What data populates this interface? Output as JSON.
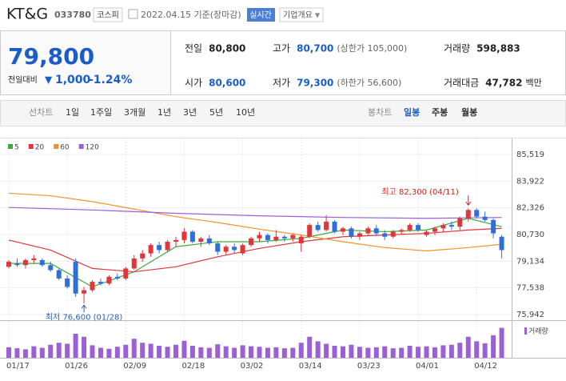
{
  "header": {
    "name": "KT&G",
    "code": "033780",
    "market": "코스피",
    "date": "2022.04.15 기준(장마감)",
    "realtime": "실시간",
    "company_info": "기업개요"
  },
  "quote": {
    "price": "79,800",
    "change_label": "전일대비",
    "change": "1,000",
    "change_pct": "-1.24%",
    "stats": [
      {
        "label": "전일",
        "value": "80,800"
      },
      {
        "label": "고가",
        "value": "80,700",
        "note": "(상한가 105,000)",
        "color": "#1a5cc8"
      },
      {
        "label": "거래량",
        "value": "598,883"
      },
      {
        "label": "시가",
        "value": "80,600",
        "color": "#1a5cc8"
      },
      {
        "label": "저가",
        "value": "79,300",
        "note": "(하한가 56,600)",
        "color": "#1a5cc8"
      },
      {
        "label": "거래대금",
        "value": "47,782",
        "unit": "백만"
      }
    ]
  },
  "toolbar": {
    "line_chart": "선차트",
    "line_periods": [
      "1일",
      "1주일",
      "3개월",
      "1년",
      "3년",
      "5년",
      "10년"
    ],
    "candle_chart": "봉차트",
    "candle_periods": [
      "일봉",
      "주봉",
      "월봉"
    ],
    "active": "일봉"
  },
  "chart_data": {
    "type": "candlestick",
    "up_color": "#e0353b",
    "down_color": "#2f6fdc",
    "open": [
      78800,
      79000,
      78900,
      79200,
      79200,
      78900,
      78600,
      78100,
      79100,
      77200,
      77400,
      77900,
      77800,
      78200,
      78100,
      78700,
      79300,
      79600,
      80100,
      79800,
      80300,
      80400,
      80900,
      80300,
      80500,
      80200,
      79700,
      80000,
      79600,
      80100,
      80500,
      80700,
      80400,
      80600,
      80500,
      80200,
      80600,
      81300,
      81000,
      81500,
      80900,
      81100,
      80600,
      80800,
      81100,
      80800,
      80600,
      80900,
      81000,
      81300,
      80700,
      80900,
      81100,
      81300,
      81200,
      81700,
      82200,
      81800,
      81600,
      80600
    ],
    "high": [
      79200,
      79300,
      79300,
      79500,
      79300,
      79100,
      78700,
      78300,
      79300,
      77600,
      78000,
      78100,
      78300,
      78400,
      78800,
      79500,
      79800,
      80200,
      80300,
      80400,
      80600,
      81100,
      81000,
      80600,
      80700,
      80300,
      80100,
      80200,
      80200,
      80600,
      80900,
      80800,
      81000,
      80700,
      80800,
      80700,
      81400,
      81500,
      81900,
      81600,
      81200,
      81200,
      80900,
      81200,
      81300,
      81000,
      81000,
      81100,
      81400,
      81400,
      81000,
      81200,
      81400,
      81500,
      81800,
      82300,
      82300,
      82100,
      81700,
      80700
    ],
    "low": [
      78700,
      78800,
      78700,
      79000,
      78800,
      78500,
      78000,
      77500,
      77000,
      76600,
      77300,
      77700,
      77700,
      78000,
      78000,
      78600,
      79100,
      79400,
      79600,
      79700,
      80000,
      80200,
      80200,
      80000,
      80100,
      79500,
      79500,
      79600,
      79500,
      80000,
      80300,
      80200,
      80300,
      80300,
      80300,
      79700,
      80500,
      80900,
      80900,
      80800,
      80700,
      80500,
      80400,
      80700,
      80700,
      80400,
      80500,
      80700,
      80900,
      80900,
      80600,
      80700,
      80900,
      81000,
      81000,
      81500,
      81700,
      81500,
      80500,
      79300
    ],
    "close": [
      79100,
      78900,
      79200,
      79300,
      78900,
      78600,
      78100,
      77600,
      77200,
      77400,
      77900,
      77800,
      78200,
      78100,
      78700,
      79300,
      79600,
      80100,
      79800,
      80300,
      80400,
      80900,
      80300,
      80500,
      80200,
      79700,
      80000,
      79800,
      80100,
      80500,
      80700,
      80400,
      80600,
      80500,
      80700,
      80600,
      81300,
      81000,
      81500,
      80900,
      81100,
      80600,
      80800,
      81100,
      80800,
      80600,
      80900,
      81000,
      81300,
      81000,
      80900,
      81100,
      81300,
      81200,
      81700,
      82200,
      81800,
      81600,
      80800,
      79800
    ],
    "volume": [
      210000,
      190000,
      170000,
      230000,
      200000,
      260000,
      300000,
      280000,
      480000,
      420000,
      250000,
      200000,
      180000,
      220000,
      260000,
      380000,
      300000,
      280000,
      240000,
      220000,
      260000,
      340000,
      240000,
      210000,
      200000,
      270000,
      230000,
      200000,
      250000,
      230000,
      220000,
      200000,
      210000,
      190000,
      200000,
      300000,
      420000,
      330000,
      280000,
      240000,
      230000,
      260000,
      220000,
      200000,
      210000,
      230000,
      190000,
      200000,
      240000,
      220000,
      230000,
      210000,
      250000,
      260000,
      300000,
      420000,
      330000,
      290000,
      450000,
      598883
    ],
    "volume_label": "거래량",
    "volume_color": "#9b5fd6",
    "vlim": [
      0,
      640000
    ],
    "series": [
      {
        "name": "5",
        "color": "#3aa83a",
        "x": [
          0,
          5,
          10,
          15,
          20,
          25,
          30,
          35,
          40,
          45,
          50,
          55,
          59
        ],
        "values": [
          79000,
          79000,
          77600,
          78500,
          80000,
          80300,
          80300,
          80500,
          81000,
          80900,
          81000,
          81700,
          81200
        ]
      },
      {
        "name": "20",
        "color": "#e0353b",
        "x": [
          0,
          5,
          10,
          15,
          20,
          25,
          30,
          35,
          40,
          45,
          50,
          55,
          59
        ],
        "values": [
          80400,
          79800,
          78700,
          78500,
          78800,
          79400,
          79900,
          80300,
          80600,
          80700,
          80800,
          81000,
          81100
        ]
      },
      {
        "name": "60",
        "color": "#f0922a",
        "x": [
          0,
          5,
          10,
          15,
          20,
          25,
          30,
          35,
          40,
          45,
          50,
          55,
          59
        ],
        "values": [
          83200,
          83050,
          82700,
          82250,
          81800,
          81450,
          81050,
          80700,
          80300,
          79950,
          79750,
          79950,
          80150
        ]
      },
      {
        "name": "120",
        "color": "#9b5fd6",
        "x": [
          0,
          10,
          20,
          30,
          40,
          50,
          59
        ],
        "values": [
          82350,
          82200,
          82000,
          81850,
          81750,
          81700,
          81750
        ]
      }
    ],
    "ylim": [
      75942,
      85519
    ],
    "yticks": [
      {
        "value": 75942,
        "label": "75,942"
      },
      {
        "value": 77538,
        "label": "77,538"
      },
      {
        "value": 79134,
        "label": "79,134"
      },
      {
        "value": 80730,
        "label": "80,730"
      },
      {
        "value": 82326,
        "label": "82,326"
      },
      {
        "value": 83922,
        "label": "83,922"
      },
      {
        "value": 85519,
        "label": "85,519"
      }
    ],
    "xticks": [
      {
        "value": 0,
        "label": "01/17"
      },
      {
        "value": 7,
        "label": "01/26"
      },
      {
        "value": 14,
        "label": "02/09"
      },
      {
        "value": 21,
        "label": "02/18"
      },
      {
        "value": 28,
        "label": "03/02"
      },
      {
        "value": 35,
        "label": "03/14"
      },
      {
        "value": 42,
        "label": "03/23"
      },
      {
        "value": 49,
        "label": "04/01"
      },
      {
        "value": 56,
        "label": "04/12"
      }
    ],
    "annotations": [
      {
        "text": "최고 82,300 (04/11)",
        "x": 55,
        "y": 82300,
        "position": "above",
        "color": "#cc2222"
      },
      {
        "text": "최저 76,600 (01/28)",
        "x": 9,
        "y": 76600,
        "position": "below",
        "color": "#2a5fb8"
      }
    ]
  }
}
